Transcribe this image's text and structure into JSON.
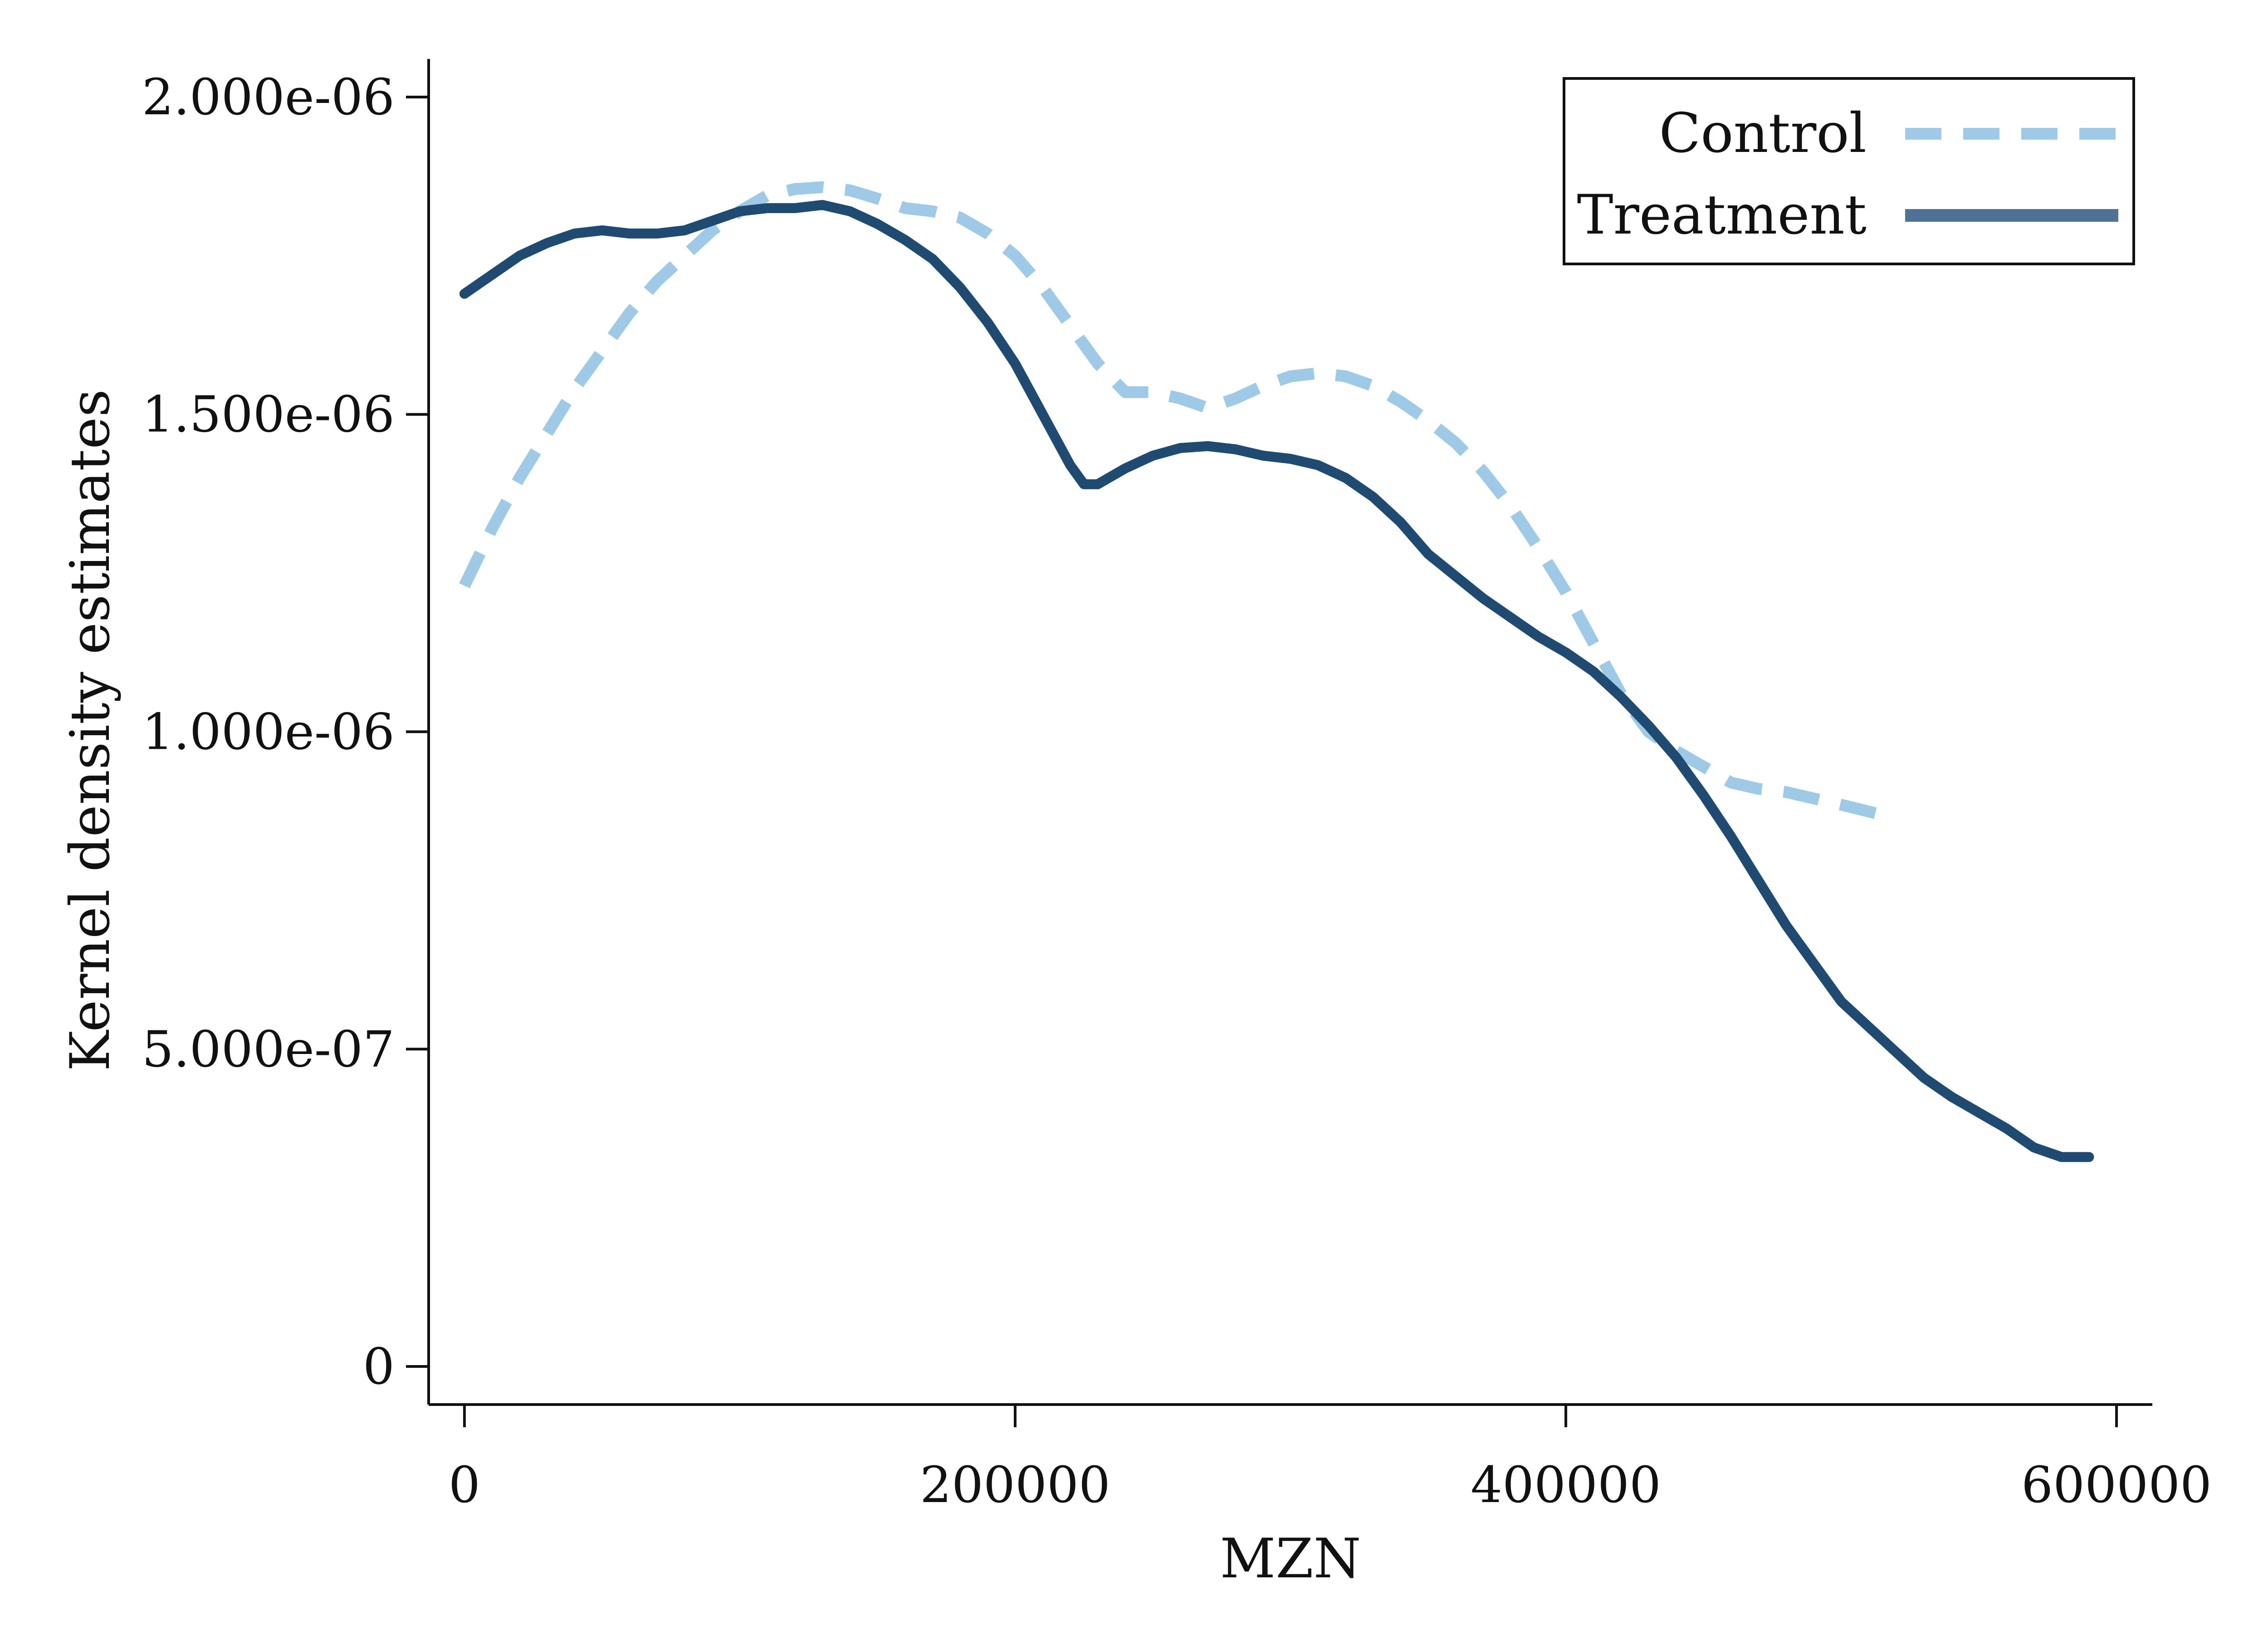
{
  "chart_data": {
    "type": "line",
    "title": "",
    "xlabel": "MZN",
    "ylabel": "Kernel density estimates",
    "xlim": [
      -13000,
      613000
    ],
    "ylim": [
      -6e-08,
      2.06e-06
    ],
    "x_ticks": [
      0,
      200000,
      400000,
      600000
    ],
    "x_tick_labels": [
      "0",
      "200000",
      "400000",
      "600000"
    ],
    "y_ticks": [
      0,
      5e-07,
      1e-06,
      1.5e-06,
      2e-06
    ],
    "y_tick_labels": [
      "0",
      "5.000e-07",
      "1.000e-06",
      "1.500e-06",
      "2.000e-06"
    ],
    "grid": false,
    "legend": "top-right",
    "series": [
      {
        "name": "Control",
        "color": "#9ecae8",
        "style": "dashed",
        "x": [
          0,
          10000,
          20000,
          30000,
          40000,
          50000,
          60000,
          70000,
          80000,
          90000,
          100000,
          110000,
          120000,
          130000,
          140000,
          150000,
          160000,
          170000,
          180000,
          190000,
          200000,
          210000,
          220000,
          230000,
          240000,
          250000,
          260000,
          270000,
          280000,
          290000,
          300000,
          310000,
          320000,
          330000,
          340000,
          350000,
          360000,
          370000,
          380000,
          390000,
          400000,
          410000,
          420000,
          430000,
          440000,
          450000,
          460000,
          470000,
          480000,
          490000,
          500000,
          514000
        ],
        "y": [
          1.23e-06,
          1.32e-06,
          1.4e-06,
          1.47e-06,
          1.54e-06,
          1.6e-06,
          1.66e-06,
          1.71e-06,
          1.75e-06,
          1.79e-06,
          1.82e-06,
          1.845e-06,
          1.855e-06,
          1.858e-06,
          1.853e-06,
          1.84e-06,
          1.825e-06,
          1.82e-06,
          1.81e-06,
          1.785e-06,
          1.75e-06,
          1.7e-06,
          1.64e-06,
          1.58e-06,
          1.535e-06,
          1.535e-06,
          1.525e-06,
          1.51e-06,
          1.525e-06,
          1.545e-06,
          1.56e-06,
          1.565e-06,
          1.56e-06,
          1.545e-06,
          1.52e-06,
          1.49e-06,
          1.455e-06,
          1.41e-06,
          1.355e-06,
          1.29e-06,
          1.22e-06,
          1.14e-06,
          1.06e-06,
          1e-06,
          9.7e-07,
          9.45e-07,
          9.2e-07,
          9.1e-07,
          9.05e-07,
          8.95e-07,
          8.85e-07,
          8.7e-07
        ]
      },
      {
        "name": "Treatment",
        "color": "#1f4a72",
        "legend_color": "#4f7196",
        "style": "solid",
        "x": [
          0,
          10000,
          20000,
          30000,
          40000,
          50000,
          60000,
          70000,
          80000,
          90000,
          100000,
          110000,
          120000,
          130000,
          140000,
          150000,
          160000,
          170000,
          180000,
          190000,
          200000,
          210000,
          220000,
          225000,
          230000,
          240000,
          250000,
          260000,
          270000,
          280000,
          290000,
          300000,
          310000,
          320000,
          330000,
          340000,
          350000,
          360000,
          370000,
          380000,
          390000,
          400000,
          410000,
          420000,
          430000,
          440000,
          450000,
          460000,
          470000,
          480000,
          490000,
          500000,
          510000,
          520000,
          530000,
          540000,
          550000,
          560000,
          570000,
          580000,
          590000
        ],
        "y": [
          1.69e-06,
          1.72e-06,
          1.75e-06,
          1.77e-06,
          1.785e-06,
          1.79e-06,
          1.785e-06,
          1.785e-06,
          1.79e-06,
          1.805e-06,
          1.82e-06,
          1.825e-06,
          1.825e-06,
          1.83e-06,
          1.82e-06,
          1.8e-06,
          1.775e-06,
          1.745e-06,
          1.7e-06,
          1.645e-06,
          1.58e-06,
          1.5e-06,
          1.42e-06,
          1.39e-06,
          1.39e-06,
          1.415e-06,
          1.435e-06,
          1.447e-06,
          1.45e-06,
          1.445e-06,
          1.435e-06,
          1.43e-06,
          1.42e-06,
          1.4e-06,
          1.37e-06,
          1.33e-06,
          1.28e-06,
          1.245e-06,
          1.21e-06,
          1.18e-06,
          1.15e-06,
          1.125e-06,
          1.095e-06,
          1.055e-06,
          1.01e-06,
          9.6e-07,
          9e-07,
          8.35e-07,
          7.65e-07,
          6.95e-07,
          6.35e-07,
          5.75e-07,
          5.35e-07,
          4.95e-07,
          4.55e-07,
          4.25e-07,
          4e-07,
          3.75e-07,
          3.45e-07,
          3.3e-07,
          3.3e-07
        ]
      }
    ]
  }
}
